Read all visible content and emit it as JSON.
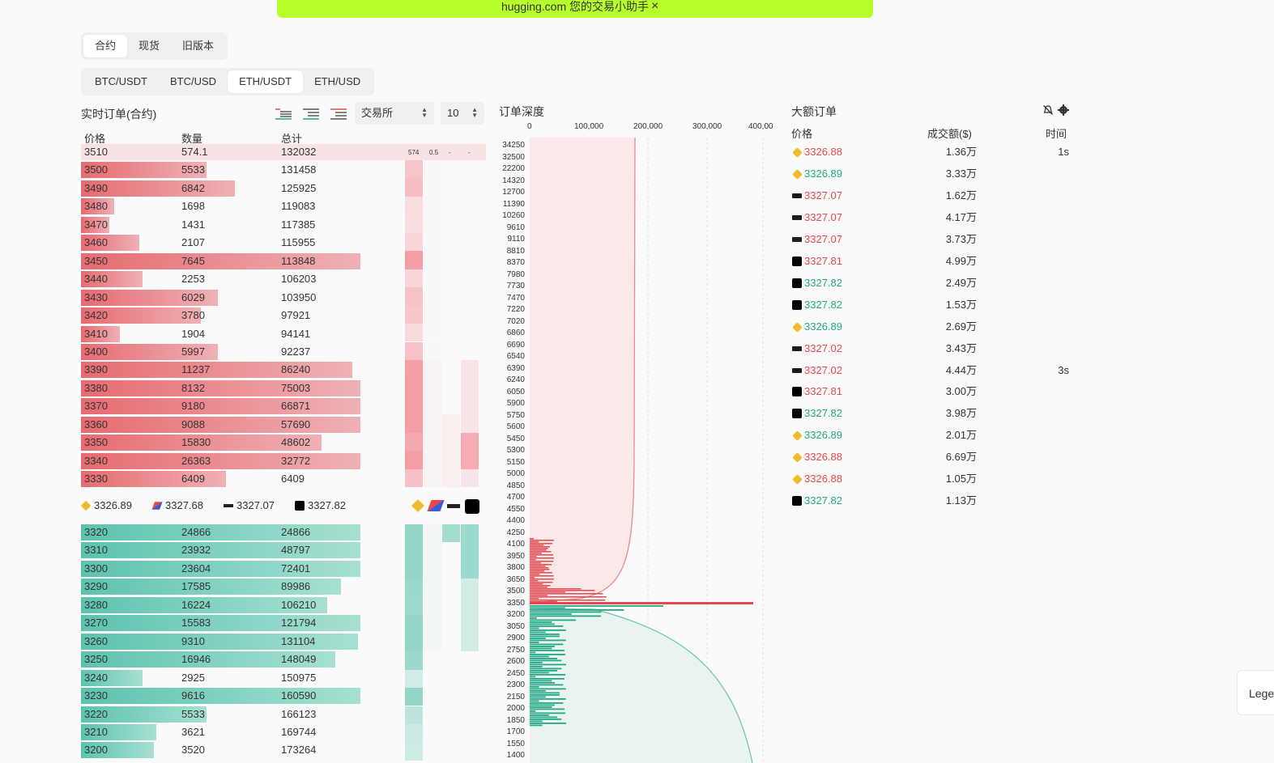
{
  "banner": {
    "text": "hugging.com 您的交易小助手",
    "close": "×"
  },
  "tabs_market": [
    {
      "label": "合约",
      "active": true
    },
    {
      "label": "现货",
      "active": false
    },
    {
      "label": "旧版本",
      "active": false
    }
  ],
  "tabs_pair": [
    {
      "label": "BTC/USDT",
      "active": false
    },
    {
      "label": "BTC/USD",
      "active": false
    },
    {
      "label": "ETH/USDT",
      "active": true
    },
    {
      "label": "ETH/USD",
      "active": false
    }
  ],
  "orderbook": {
    "title": "实时订单(合约)",
    "exchange_select": "交易所",
    "depth_select": "10",
    "headers": {
      "price": "价格",
      "qty": "数量",
      "total": "总计"
    },
    "top_row_extra": [
      "574",
      "0.5",
      "-",
      "-"
    ],
    "asks": [
      {
        "price": "3510",
        "qty": "574.1",
        "total": "132032",
        "fill": 0.19
      },
      {
        "price": "3500",
        "qty": "5533",
        "total": "131458",
        "fill": 0.45
      },
      {
        "price": "3490",
        "qty": "6842",
        "total": "125925",
        "fill": 0.55
      },
      {
        "price": "3480",
        "qty": "1698",
        "total": "119083",
        "fill": 0.12
      },
      {
        "price": "3470",
        "qty": "1431",
        "total": "117385",
        "fill": 0.1
      },
      {
        "price": "3460",
        "qty": "2107",
        "total": "115955",
        "fill": 0.21
      },
      {
        "price": "3450",
        "qty": "7645",
        "total": "113848",
        "fill": 1.0
      },
      {
        "price": "3440",
        "qty": "2253",
        "total": "106203",
        "fill": 0.22
      },
      {
        "price": "3430",
        "qty": "6029",
        "total": "103950",
        "fill": 0.49
      },
      {
        "price": "3420",
        "qty": "3780",
        "total": "97921",
        "fill": 0.43
      },
      {
        "price": "3410",
        "qty": "1904",
        "total": "94141",
        "fill": 0.14
      },
      {
        "price": "3400",
        "qty": "5997",
        "total": "92237",
        "fill": 0.49
      },
      {
        "price": "3390",
        "qty": "11237",
        "total": "86240",
        "fill": 0.97
      },
      {
        "price": "3380",
        "qty": "8132",
        "total": "75003",
        "fill": 1.0
      },
      {
        "price": "3370",
        "qty": "9180",
        "total": "66871",
        "fill": 1.0
      },
      {
        "price": "3360",
        "qty": "9088",
        "total": "57690",
        "fill": 1.0
      },
      {
        "price": "3350",
        "qty": "15830",
        "total": "48602",
        "fill": 0.86
      },
      {
        "price": "3340",
        "qty": "26363",
        "total": "32772",
        "fill": 1.0
      },
      {
        "price": "3330",
        "qty": "6409",
        "total": "6409",
        "fill": 0.52
      }
    ],
    "mid_prices": [
      {
        "icon": "binance-icon",
        "value": "3326.89"
      },
      {
        "icon": "bitmex-icon",
        "value": "3327.68"
      },
      {
        "icon": "bybit-icon",
        "value": "3327.07"
      },
      {
        "icon": "okx-icon",
        "value": "3327.82"
      }
    ],
    "bids": [
      {
        "price": "3320",
        "qty": "24866",
        "total": "24866",
        "fill": 1.0
      },
      {
        "price": "3310",
        "qty": "23932",
        "total": "48797",
        "fill": 1.0
      },
      {
        "price": "3300",
        "qty": "23604",
        "total": "72401",
        "fill": 1.0
      },
      {
        "price": "3290",
        "qty": "17585",
        "total": "89986",
        "fill": 0.93
      },
      {
        "price": "3280",
        "qty": "16224",
        "total": "106210",
        "fill": 0.88
      },
      {
        "price": "3270",
        "qty": "15583",
        "total": "121794",
        "fill": 1.0
      },
      {
        "price": "3260",
        "qty": "9310",
        "total": "131104",
        "fill": 0.99
      },
      {
        "price": "3250",
        "qty": "16946",
        "total": "148049",
        "fill": 0.91
      },
      {
        "price": "3240",
        "qty": "2925",
        "total": "150975",
        "fill": 0.22
      },
      {
        "price": "3230",
        "qty": "9616",
        "total": "160590",
        "fill": 1.0
      },
      {
        "price": "3220",
        "qty": "5533",
        "total": "166123",
        "fill": 0.45
      },
      {
        "price": "3210",
        "qty": "3621",
        "total": "169744",
        "fill": 0.27
      },
      {
        "price": "3200",
        "qty": "3520",
        "total": "173264",
        "fill": 0.26
      }
    ]
  },
  "depth": {
    "title": "订单深度",
    "x_ticks": [
      "0",
      "100,000",
      "200,000",
      "300,000",
      "400,00"
    ],
    "y_ticks": [
      "34250",
      "32500",
      "22200",
      "14320",
      "12700",
      "11390",
      "10260",
      "9610",
      "9110",
      "8810",
      "8370",
      "7980",
      "7730",
      "7470",
      "7220",
      "7020",
      "6860",
      "6690",
      "6540",
      "6390",
      "6240",
      "6050",
      "5900",
      "5750",
      "5600",
      "5450",
      "5300",
      "5150",
      "5000",
      "4850",
      "4700",
      "4550",
      "4400",
      "4250",
      "4100",
      "3950",
      "3800",
      "3650",
      "3500",
      "3350",
      "3200",
      "3050",
      "2900",
      "2750",
      "2600",
      "2450",
      "2300",
      "2150",
      "2000",
      "1850",
      "1700",
      "1550",
      "1400"
    ]
  },
  "big_orders": {
    "title": "大额订单",
    "headers": {
      "price": "价格",
      "amount": "成交额($)",
      "time": "时间"
    },
    "rows": [
      {
        "ex": "binance",
        "price": "3326.88",
        "side": "red",
        "amount": "1.36万",
        "time": "1s"
      },
      {
        "ex": "binance",
        "price": "3326.89",
        "side": "green",
        "amount": "3.33万",
        "time": ""
      },
      {
        "ex": "bybit",
        "price": "3327.07",
        "side": "red",
        "amount": "1.62万",
        "time": ""
      },
      {
        "ex": "bybit",
        "price": "3327.07",
        "side": "red",
        "amount": "4.17万",
        "time": ""
      },
      {
        "ex": "bybit",
        "price": "3327.07",
        "side": "red",
        "amount": "3.73万",
        "time": ""
      },
      {
        "ex": "okx",
        "price": "3327.81",
        "side": "red",
        "amount": "4.99万",
        "time": ""
      },
      {
        "ex": "okx",
        "price": "3327.82",
        "side": "green",
        "amount": "2.49万",
        "time": ""
      },
      {
        "ex": "okx",
        "price": "3327.82",
        "side": "green",
        "amount": "1.53万",
        "time": ""
      },
      {
        "ex": "binance",
        "price": "3326.89",
        "side": "green",
        "amount": "2.69万",
        "time": ""
      },
      {
        "ex": "bybit",
        "price": "3327.02",
        "side": "red",
        "amount": "3.43万",
        "time": ""
      },
      {
        "ex": "bybit",
        "price": "3327.02",
        "side": "red",
        "amount": "4.44万",
        "time": "3s"
      },
      {
        "ex": "okx",
        "price": "3327.81",
        "side": "red",
        "amount": "3.00万",
        "time": ""
      },
      {
        "ex": "okx",
        "price": "3327.82",
        "side": "green",
        "amount": "3.98万",
        "time": ""
      },
      {
        "ex": "binance",
        "price": "3326.89",
        "side": "green",
        "amount": "2.01万",
        "time": ""
      },
      {
        "ex": "binance",
        "price": "3326.88",
        "side": "red",
        "amount": "6.69万",
        "time": ""
      },
      {
        "ex": "binance",
        "price": "3326.88",
        "side": "red",
        "amount": "1.05万",
        "time": ""
      },
      {
        "ex": "okx",
        "price": "3327.82",
        "side": "green",
        "amount": "1.13万",
        "time": ""
      }
    ]
  },
  "legend_tab": "Lege",
  "colors": {
    "ask": "#e66b70",
    "bid": "#5cc3ad",
    "accent": "#b7ff2a"
  }
}
